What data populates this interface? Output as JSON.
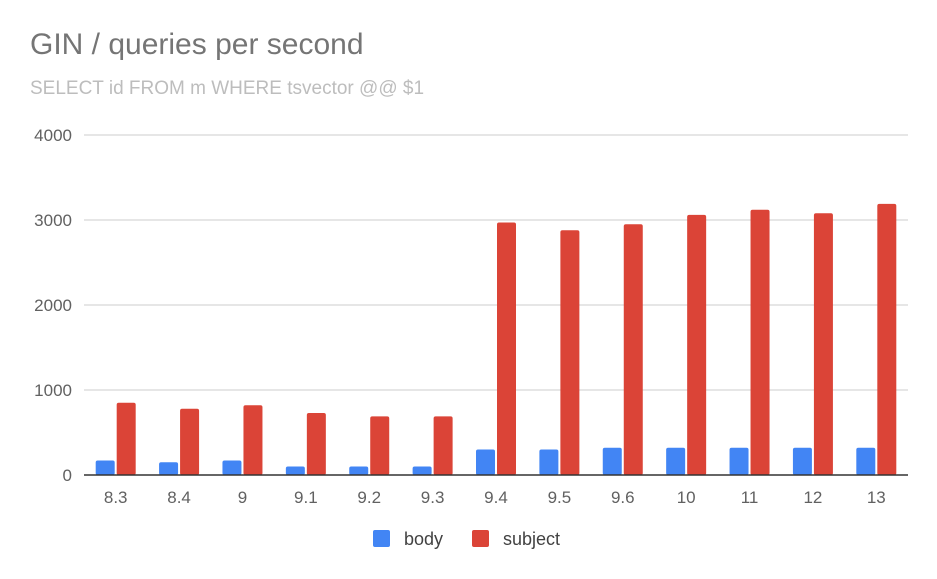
{
  "chart_data": {
    "type": "bar",
    "title": "GIN / queries per second",
    "subtitle": "SELECT id FROM m WHERE tsvector @@ $1",
    "categories": [
      "8.3",
      "8.4",
      "9",
      "9.1",
      "9.2",
      "9.3",
      "9.4",
      "9.5",
      "9.6",
      "10",
      "11",
      "12",
      "13"
    ],
    "series": [
      {
        "name": "body",
        "color": "#4285f4",
        "values": [
          170,
          150,
          170,
          100,
          100,
          100,
          300,
          300,
          320,
          320,
          320,
          320,
          320
        ]
      },
      {
        "name": "subject",
        "color": "#db4437",
        "values": [
          850,
          780,
          820,
          730,
          690,
          690,
          2970,
          2880,
          2950,
          3060,
          3120,
          3080,
          3190
        ]
      }
    ],
    "ylim": [
      0,
      4000
    ],
    "yticks": [
      0,
      1000,
      2000,
      3000,
      4000
    ],
    "grid": true,
    "legend_position": "bottom",
    "xlabel": "",
    "ylabel": ""
  }
}
